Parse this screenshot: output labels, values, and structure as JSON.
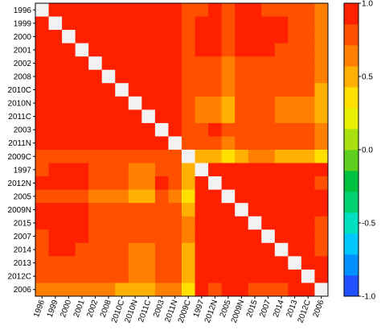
{
  "chart_data": {
    "type": "heatmap",
    "title": "",
    "xlabel": "",
    "ylabel": "",
    "row_labels": [
      "1996",
      "1999",
      "2000",
      "2001",
      "2002",
      "2008",
      "2010C",
      "2010N",
      "2011C",
      "2003",
      "2011N",
      "2009C",
      "1997",
      "2012N",
      "2005",
      "2009N",
      "2015",
      "2007",
      "2014",
      "2013",
      "2012C",
      "2006"
    ],
    "col_labels": [
      "1996",
      "1999",
      "2000",
      "2001",
      "2002",
      "2008",
      "2010C",
      "2010N",
      "2011C",
      "2003",
      "2011N",
      "2009C",
      "1997",
      "2012N",
      "2005",
      "2009N",
      "2015",
      "2007",
      "2014",
      "2013",
      "2012C",
      "2006"
    ],
    "values": [
      [
        1,
        0.97,
        0.97,
        0.97,
        0.96,
        0.96,
        0.96,
        0.96,
        0.96,
        0.97,
        0.96,
        0.77,
        0.84,
        0.87,
        0.77,
        0.88,
        0.86,
        0.84,
        0.82,
        0.8,
        0.8,
        0.62
      ],
      [
        0.97,
        1,
        0.97,
        0.97,
        0.97,
        0.96,
        0.97,
        0.96,
        0.96,
        0.96,
        0.97,
        0.79,
        0.91,
        0.9,
        0.77,
        0.9,
        0.88,
        0.9,
        0.86,
        0.82,
        0.82,
        0.6
      ],
      [
        0.97,
        0.97,
        1,
        0.97,
        0.96,
        0.96,
        0.96,
        0.96,
        0.96,
        0.96,
        0.96,
        0.76,
        0.92,
        0.92,
        0.75,
        0.88,
        0.9,
        0.9,
        0.86,
        0.82,
        0.82,
        0.58
      ],
      [
        0.97,
        0.97,
        0.97,
        1,
        0.97,
        0.97,
        0.97,
        0.96,
        0.96,
        0.96,
        0.96,
        0.8,
        0.9,
        0.89,
        0.72,
        0.88,
        0.86,
        0.88,
        0.84,
        0.8,
        0.8,
        0.62
      ],
      [
        0.96,
        0.97,
        0.96,
        0.97,
        1,
        0.97,
        0.97,
        0.97,
        0.97,
        0.96,
        0.96,
        0.82,
        0.72,
        0.72,
        0.62,
        0.78,
        0.78,
        0.8,
        0.74,
        0.74,
        0.74,
        0.58
      ],
      [
        0.96,
        0.96,
        0.96,
        0.97,
        0.97,
        1,
        0.97,
        0.97,
        0.97,
        0.97,
        0.96,
        0.8,
        0.72,
        0.74,
        0.62,
        0.8,
        0.78,
        0.8,
        0.76,
        0.74,
        0.72,
        0.58
      ],
      [
        0.96,
        0.97,
        0.96,
        0.97,
        0.97,
        0.97,
        1,
        0.97,
        0.97,
        0.97,
        0.97,
        0.84,
        0.74,
        0.74,
        0.6,
        0.8,
        0.78,
        0.8,
        0.74,
        0.72,
        0.72,
        0.56
      ],
      [
        0.96,
        0.96,
        0.96,
        0.96,
        0.97,
        0.97,
        0.97,
        1,
        0.97,
        0.97,
        0.96,
        0.83,
        0.62,
        0.62,
        0.55,
        0.72,
        0.72,
        0.74,
        0.66,
        0.6,
        0.6,
        0.55
      ],
      [
        0.96,
        0.96,
        0.96,
        0.96,
        0.97,
        0.97,
        0.97,
        0.97,
        1,
        0.97,
        0.97,
        0.84,
        0.62,
        0.6,
        0.5,
        0.72,
        0.72,
        0.74,
        0.66,
        0.62,
        0.62,
        0.46
      ],
      [
        0.97,
        0.96,
        0.96,
        0.96,
        0.96,
        0.97,
        0.97,
        0.97,
        0.97,
        1,
        0.97,
        0.82,
        0.82,
        0.86,
        0.72,
        0.85,
        0.82,
        0.84,
        0.8,
        0.78,
        0.78,
        0.6
      ],
      [
        0.96,
        0.97,
        0.96,
        0.96,
        0.96,
        0.96,
        0.97,
        0.96,
        0.97,
        0.97,
        1,
        0.84,
        0.74,
        0.74,
        0.62,
        0.8,
        0.78,
        0.8,
        0.74,
        0.72,
        0.72,
        0.58
      ],
      [
        0.77,
        0.79,
        0.76,
        0.8,
        0.82,
        0.8,
        0.84,
        0.83,
        0.84,
        0.82,
        0.84,
        1,
        0.55,
        0.5,
        0.38,
        0.55,
        0.58,
        0.6,
        0.55,
        0.52,
        0.52,
        0.42
      ],
      [
        0.84,
        0.91,
        0.92,
        0.9,
        0.72,
        0.72,
        0.74,
        0.62,
        0.62,
        0.82,
        0.74,
        0.55,
        1,
        0.97,
        0.97,
        0.97,
        0.97,
        0.97,
        0.97,
        0.97,
        0.97,
        0.86
      ],
      [
        0.87,
        0.9,
        0.92,
        0.89,
        0.72,
        0.74,
        0.74,
        0.62,
        0.6,
        0.86,
        0.74,
        0.5,
        0.97,
        1,
        0.97,
        0.97,
        0.97,
        0.97,
        0.97,
        0.97,
        0.96,
        0.84
      ],
      [
        0.77,
        0.77,
        0.75,
        0.72,
        0.62,
        0.62,
        0.6,
        0.55,
        0.5,
        0.72,
        0.62,
        0.38,
        0.97,
        0.97,
        1,
        0.97,
        0.97,
        0.97,
        0.97,
        0.96,
        0.96,
        0.88
      ],
      [
        0.88,
        0.9,
        0.88,
        0.88,
        0.78,
        0.8,
        0.8,
        0.72,
        0.72,
        0.85,
        0.8,
        0.55,
        0.97,
        0.97,
        0.97,
        1,
        0.97,
        0.97,
        0.97,
        0.97,
        0.97,
        0.86
      ],
      [
        0.86,
        0.88,
        0.9,
        0.86,
        0.78,
        0.78,
        0.78,
        0.72,
        0.72,
        0.82,
        0.78,
        0.58,
        0.97,
        0.97,
        0.97,
        0.97,
        1,
        0.97,
        0.97,
        0.97,
        0.97,
        0.84
      ],
      [
        0.84,
        0.9,
        0.9,
        0.88,
        0.8,
        0.8,
        0.8,
        0.74,
        0.74,
        0.84,
        0.8,
        0.6,
        0.97,
        0.97,
        0.97,
        0.97,
        0.97,
        1,
        0.97,
        0.97,
        0.97,
        0.84
      ],
      [
        0.82,
        0.86,
        0.86,
        0.84,
        0.74,
        0.76,
        0.74,
        0.66,
        0.66,
        0.8,
        0.74,
        0.55,
        0.97,
        0.97,
        0.97,
        0.97,
        0.97,
        0.97,
        1,
        0.97,
        0.97,
        0.84
      ],
      [
        0.8,
        0.82,
        0.82,
        0.8,
        0.74,
        0.74,
        0.72,
        0.6,
        0.62,
        0.78,
        0.72,
        0.52,
        0.97,
        0.97,
        0.96,
        0.97,
        0.97,
        0.97,
        0.97,
        1,
        0.97,
        0.86
      ],
      [
        0.8,
        0.82,
        0.82,
        0.8,
        0.74,
        0.72,
        0.72,
        0.6,
        0.62,
        0.78,
        0.72,
        0.52,
        0.97,
        0.96,
        0.96,
        0.97,
        0.97,
        0.97,
        0.97,
        0.97,
        1,
        0.9
      ],
      [
        0.62,
        0.6,
        0.58,
        0.62,
        0.58,
        0.58,
        0.56,
        0.55,
        0.46,
        0.6,
        0.58,
        0.42,
        0.86,
        0.84,
        0.88,
        0.86,
        0.84,
        0.84,
        0.84,
        0.86,
        0.9,
        1
      ]
    ],
    "diagonal_color": "#f2f2f2",
    "colorbar": {
      "range": [
        -1.0,
        1.0
      ],
      "ticks": [
        1.0,
        0.5,
        0.0,
        -0.5,
        -1.0
      ],
      "tick_labels": [
        "1.0",
        "0.5",
        "0.0",
        "-0.5",
        "-1.0"
      ],
      "colors": [
        "#2050ff",
        "#0090ff",
        "#00c8ff",
        "#00e0c0",
        "#00d070",
        "#00c040",
        "#60d020",
        "#a8e010",
        "#e8f000",
        "#ffe000",
        "#ffb000",
        "#ff8000",
        "#ff5000",
        "#ff2000"
      ]
    },
    "grid": false,
    "legend": "right"
  }
}
